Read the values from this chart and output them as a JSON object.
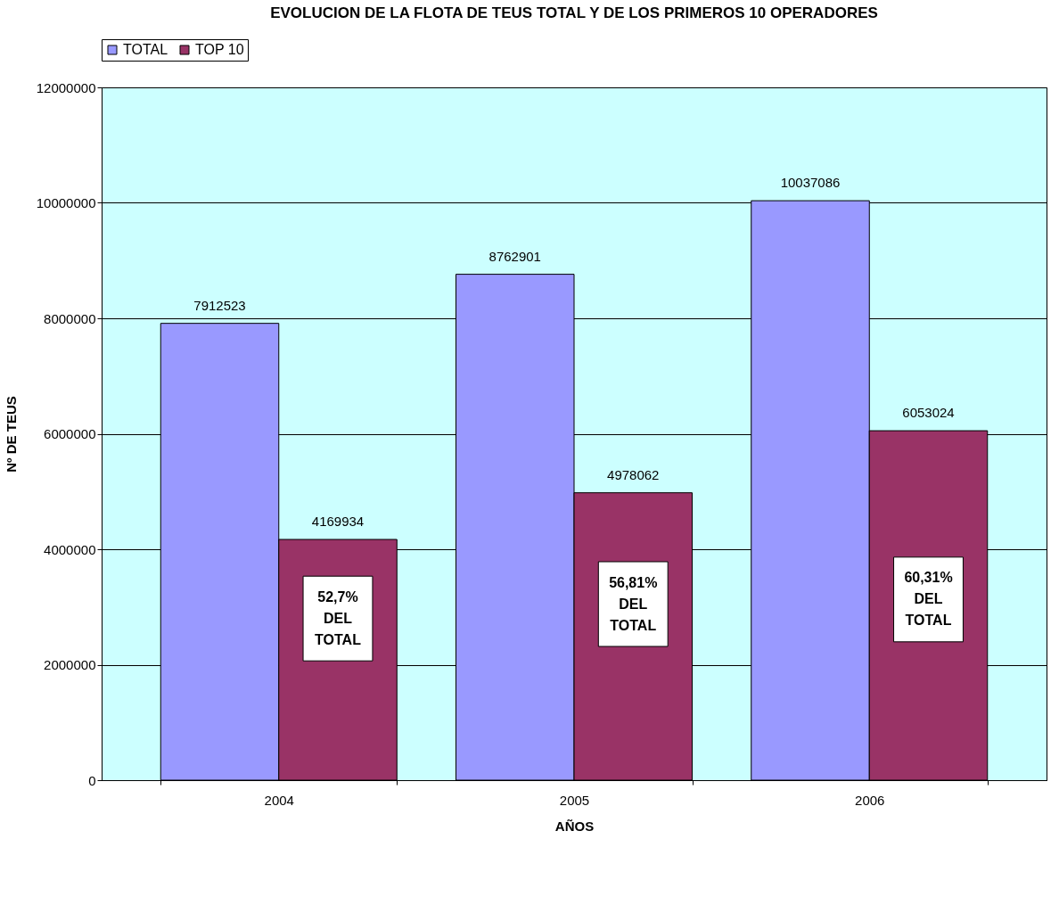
{
  "chart_data": {
    "type": "bar",
    "title": "EVOLUCION DE LA FLOTA DE TEUS TOTAL Y DE LOS PRIMEROS 10 OPERADORES",
    "xlabel": "AÑOS",
    "ylabel": "Nº DE TEUS",
    "categories": [
      "2004",
      "2005",
      "2006"
    ],
    "series": [
      {
        "name": "TOTAL",
        "color": "#9999ff",
        "values": [
          7912523,
          8762901,
          10037086
        ]
      },
      {
        "name": "TOP 10",
        "color": "#993366",
        "values": [
          4169934,
          4978062,
          6053024
        ]
      }
    ],
    "ylim": [
      0,
      12000000
    ],
    "yticks": [
      0,
      2000000,
      4000000,
      6000000,
      8000000,
      10000000,
      12000000
    ],
    "grid": "y",
    "legend": "top",
    "data_labels": true,
    "annotations": [
      {
        "text": "52,7%\nDEL\nTOTAL",
        "x": "2004",
        "y": 2800000
      },
      {
        "text": "56,81%\nDEL\nTOTAL",
        "x": "2005",
        "y": 3050000
      },
      {
        "text": "60,31%\nDEL\nTOTAL",
        "x": "2006",
        "y": 3130000
      }
    ]
  }
}
